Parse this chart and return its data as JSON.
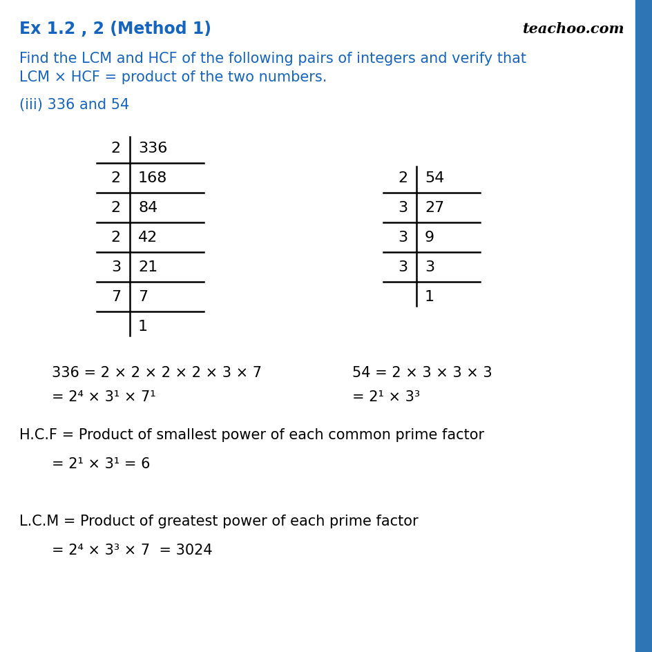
{
  "title": "Ex 1.2 , 2 (Method 1)",
  "watermark": "teachoo.com",
  "blue_color": "#1565C0",
  "black_color": "#000000",
  "bg_color": "#ffffff",
  "question_line1": "Find the LCM and HCF of the following pairs of integers and verify that",
  "question_line2": "LCM × HCF = product of the two numbers.",
  "subpart": "(iii) 336 and 54",
  "div336": [
    [
      "2",
      "336"
    ],
    [
      "2",
      "168"
    ],
    [
      "2",
      "84"
    ],
    [
      "2",
      "42"
    ],
    [
      "3",
      "21"
    ],
    [
      "7",
      "7"
    ],
    [
      "",
      "1"
    ]
  ],
  "div54": [
    [
      "2",
      "54"
    ],
    [
      "3",
      "27"
    ],
    [
      "3",
      "9"
    ],
    [
      "3",
      "3"
    ],
    [
      "",
      "1"
    ]
  ],
  "factorization_336_line1": "336 = 2 × 2 × 2 × 2 × 3 × 7",
  "factorization_336_line2": "= 2⁴ × 3¹ × 7¹",
  "factorization_54_line1": "54 = 2 × 3 × 3 × 3",
  "factorization_54_line2": "= 2¹ × 3³",
  "hcf_line1": "H.C.F = Product of smallest power of each common prime factor",
  "hcf_line2": "= 2¹ × 3¹ = 6",
  "lcm_line1": "L.C.M = Product of greatest power of each prime factor",
  "lcm_line2": "= 2⁴ × 3³ × 7  = 3024",
  "right_bar_color": "#2E75B6",
  "font_size_title": 17,
  "font_size_question": 15,
  "font_size_division": 16,
  "font_size_factor": 15,
  "font_size_hcf_lcm": 15
}
